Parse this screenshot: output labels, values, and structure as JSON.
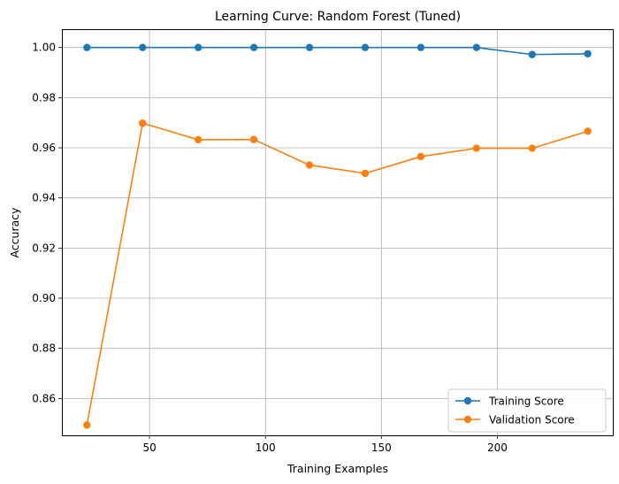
{
  "chart_data": {
    "type": "line",
    "title": "Learning Curve: Random Forest (Tuned)",
    "xlabel": "Training Examples",
    "ylabel": "Accuracy",
    "xlim": [
      12.2,
      249.8
    ],
    "ylim": [
      0.8453,
      1.0073
    ],
    "xticks": [
      50,
      100,
      150,
      200
    ],
    "yticks": [
      0.86,
      0.88,
      0.9,
      0.92,
      0.94,
      0.96,
      0.98,
      1.0
    ],
    "ytick_labels": [
      "0.86",
      "0.88",
      "0.90",
      "0.92",
      "0.94",
      "0.96",
      "0.98",
      "1.00"
    ],
    "grid": true,
    "legend_position": "bottom-right",
    "x": [
      23,
      47,
      71,
      95,
      119,
      143,
      167,
      191,
      215,
      239
    ],
    "series": [
      {
        "name": "Training Score",
        "color": "#1f77b4",
        "marker": "circle",
        "values": [
          1.0,
          1.0,
          1.0,
          1.0,
          1.0,
          1.0,
          1.0,
          1.0,
          0.9972,
          0.9975
        ]
      },
      {
        "name": "Validation Score",
        "color": "#ff7f0e",
        "marker": "circle",
        "values": [
          0.8494,
          0.9698,
          0.9632,
          0.9633,
          0.9531,
          0.9498,
          0.9565,
          0.9598,
          0.9598,
          0.9666
        ]
      }
    ]
  }
}
